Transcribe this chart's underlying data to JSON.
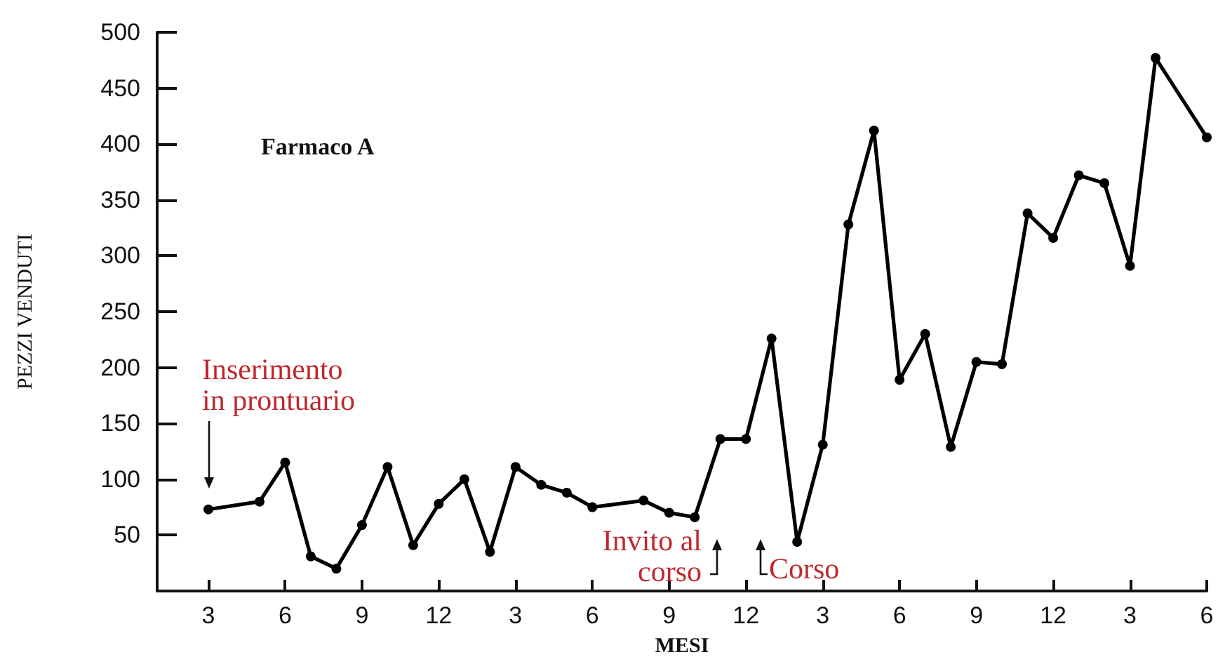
{
  "chart_data": {
    "type": "line",
    "xlabel": "MESI",
    "ylabel": "PEZZI VENDUTI",
    "annotations": [
      "Farmaco A",
      "Inserimento\nin prontuario",
      "Invito al\ncorso",
      "Corso"
    ],
    "categories": [
      null,
      null,
      "3",
      null,
      null,
      "6",
      null,
      null,
      "9",
      null,
      null,
      "12",
      null,
      null,
      "3",
      null,
      null,
      "6",
      null,
      null,
      "9",
      null,
      null,
      "12",
      null,
      null,
      "3",
      null,
      null,
      "6",
      null,
      null,
      "9",
      null,
      null,
      "12",
      null,
      null,
      "3",
      null,
      null,
      "6"
    ],
    "series": [
      {
        "color": "#000000",
        "values": [
          null,
          null,
          73,
          null,
          80,
          115,
          31,
          20,
          59,
          111,
          41,
          78,
          100,
          35,
          111,
          95,
          88,
          75,
          null,
          81,
          70,
          66,
          136,
          136,
          226,
          44,
          131,
          328,
          412,
          189,
          230,
          129,
          205,
          203,
          338,
          316,
          372,
          365,
          291,
          477,
          null,
          406
        ]
      }
    ],
    "ylim": [
      0,
      500
    ],
    "yticks": [
      50,
      100,
      150,
      200,
      250,
      300,
      350,
      400,
      450,
      500
    ],
    "grid": false,
    "marker": "circle",
    "line_style": "solid"
  }
}
